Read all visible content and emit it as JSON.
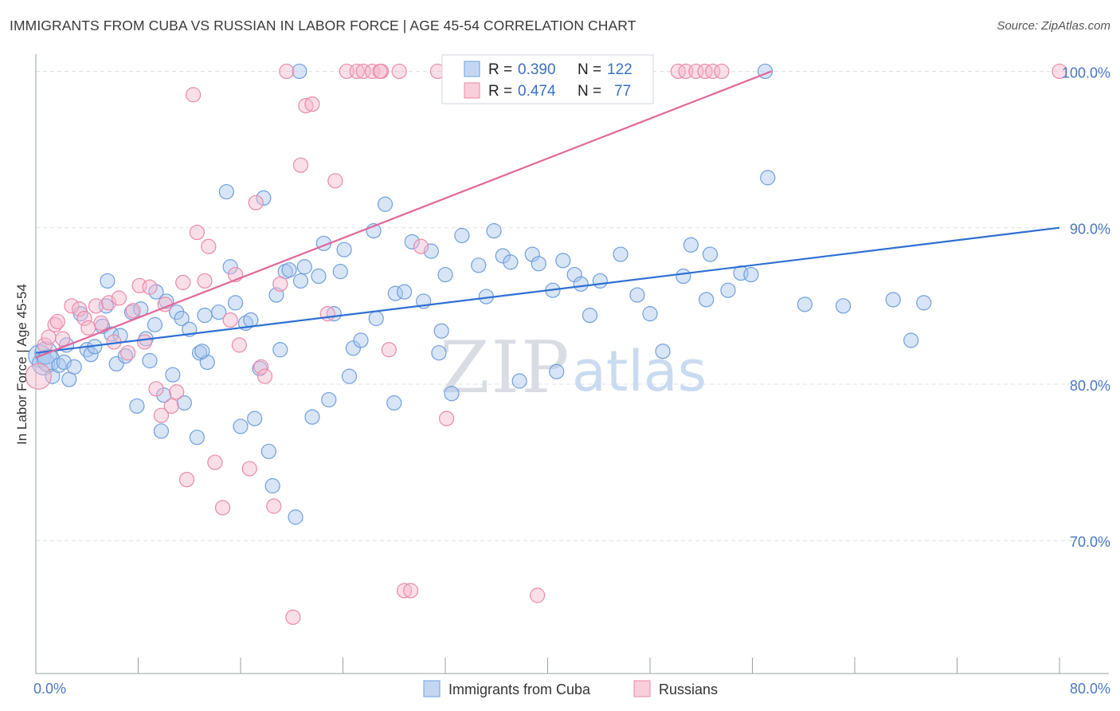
{
  "header": {
    "title": "IMMIGRANTS FROM CUBA VS RUSSIAN IN LABOR FORCE | AGE 45-54 CORRELATION CHART",
    "source": "Source: ZipAtlas.com"
  },
  "watermark": {
    "zip": "ZIP",
    "atlas": "atlas"
  },
  "chart_data": {
    "type": "scatter",
    "title": "IMMIGRANTS FROM CUBA VS RUSSIAN IN LABOR FORCE | AGE 45-54 CORRELATION CHART",
    "xlabel": "",
    "ylabel": "In Labor Force | Age 45-54",
    "xlim": [
      0,
      80
    ],
    "ylim": [
      61.5,
      101.5
    ],
    "x_tick_labels": [
      "0.0%",
      "80.0%"
    ],
    "y_ticks": [
      70,
      80,
      90,
      100
    ],
    "y_tick_labels": [
      "70.0%",
      "80.0%",
      "90.0%",
      "100.0%"
    ],
    "grid": true,
    "legend_placement": "bottom-center",
    "stats": [
      {
        "r_label": "R =",
        "r_value": "0.390",
        "n_label": "N =",
        "n_value": "122"
      },
      {
        "r_label": "R =",
        "r_value": "0.474",
        "n_label": "N =",
        "n_value": "77"
      }
    ],
    "series": [
      {
        "name": "Immigrants from Cuba",
        "color": "#a9c6ee",
        "stroke": "#6f9fdc",
        "line_color": "#2d6fd2",
        "trend": {
          "x": [
            0,
            80
          ],
          "y": [
            82.0,
            90.0
          ]
        },
        "points": [
          [
            0.3,
            81.8
          ],
          [
            0.6,
            81.3
          ],
          [
            0.8,
            82.0
          ],
          [
            1.0,
            81.5
          ],
          [
            1.3,
            80.5
          ],
          [
            1.8,
            81.2
          ],
          [
            2.2,
            81.4
          ],
          [
            2.4,
            82.5
          ],
          [
            2.6,
            80.3
          ],
          [
            3.0,
            81.1
          ],
          [
            3.5,
            84.5
          ],
          [
            4.0,
            82.2
          ],
          [
            4.3,
            81.9
          ],
          [
            4.6,
            82.4
          ],
          [
            5.2,
            83.7
          ],
          [
            5.5,
            85.0
          ],
          [
            5.6,
            86.6
          ],
          [
            5.9,
            83.2
          ],
          [
            6.3,
            81.3
          ],
          [
            6.6,
            83.1
          ],
          [
            7.0,
            81.8
          ],
          [
            7.5,
            84.6
          ],
          [
            7.9,
            78.6
          ],
          [
            8.2,
            84.8
          ],
          [
            8.6,
            82.9
          ],
          [
            8.9,
            81.5
          ],
          [
            9.3,
            83.8
          ],
          [
            9.4,
            85.9
          ],
          [
            9.8,
            77.0
          ],
          [
            10.0,
            79.3
          ],
          [
            10.2,
            85.3
          ],
          [
            10.7,
            80.6
          ],
          [
            11.0,
            84.6
          ],
          [
            11.4,
            84.2
          ],
          [
            11.6,
            78.8
          ],
          [
            12.0,
            83.5
          ],
          [
            12.6,
            76.6
          ],
          [
            12.8,
            82.0
          ],
          [
            13.2,
            84.4
          ],
          [
            13.4,
            81.4
          ],
          [
            14.3,
            84.6
          ],
          [
            14.9,
            92.3
          ],
          [
            15.2,
            87.5
          ],
          [
            15.6,
            85.2
          ],
          [
            16.0,
            77.3
          ],
          [
            16.4,
            83.9
          ],
          [
            16.8,
            84.1
          ],
          [
            17.1,
            77.8
          ],
          [
            17.5,
            81.0
          ],
          [
            17.8,
            91.9
          ],
          [
            18.2,
            75.7
          ],
          [
            18.5,
            73.5
          ],
          [
            18.8,
            85.7
          ],
          [
            19.1,
            82.2
          ],
          [
            19.5,
            87.2
          ],
          [
            19.8,
            87.3
          ],
          [
            20.3,
            71.5
          ],
          [
            20.7,
            86.6
          ],
          [
            21.0,
            87.5
          ],
          [
            21.6,
            77.9
          ],
          [
            22.1,
            86.9
          ],
          [
            22.5,
            89.0
          ],
          [
            22.9,
            79.0
          ],
          [
            23.3,
            84.5
          ],
          [
            23.8,
            87.2
          ],
          [
            24.1,
            88.6
          ],
          [
            24.5,
            80.5
          ],
          [
            24.8,
            82.3
          ],
          [
            25.4,
            82.8
          ],
          [
            26.4,
            89.8
          ],
          [
            26.6,
            84.2
          ],
          [
            27.3,
            91.5
          ],
          [
            28.1,
            85.8
          ],
          [
            28.8,
            85.9
          ],
          [
            29.4,
            89.1
          ],
          [
            30.3,
            85.3
          ],
          [
            30.9,
            88.5
          ],
          [
            31.5,
            82.0
          ],
          [
            31.7,
            83.4
          ],
          [
            32.0,
            87.0
          ],
          [
            32.5,
            79.4
          ],
          [
            33.3,
            89.5
          ],
          [
            34.6,
            87.6
          ],
          [
            35.2,
            85.6
          ],
          [
            35.8,
            89.8
          ],
          [
            36.5,
            88.2
          ],
          [
            37.1,
            87.8
          ],
          [
            37.8,
            80.2
          ],
          [
            38.8,
            88.3
          ],
          [
            39.3,
            87.7
          ],
          [
            40.4,
            86.0
          ],
          [
            40.7,
            80.8
          ],
          [
            41.2,
            87.9
          ],
          [
            42.1,
            87.0
          ],
          [
            42.6,
            86.4
          ],
          [
            43.3,
            84.4
          ],
          [
            44.1,
            86.6
          ],
          [
            45.7,
            88.3
          ],
          [
            47.0,
            85.7
          ],
          [
            48.0,
            84.5
          ],
          [
            49.0,
            82.1
          ],
          [
            50.6,
            86.9
          ],
          [
            51.2,
            88.9
          ],
          [
            52.4,
            85.4
          ],
          [
            52.7,
            88.3
          ],
          [
            54.1,
            86.0
          ],
          [
            55.1,
            87.1
          ],
          [
            55.9,
            87.0
          ],
          [
            57.2,
            93.2
          ],
          [
            60.1,
            85.1
          ],
          [
            63.1,
            85.0
          ],
          [
            67.0,
            85.4
          ],
          [
            68.4,
            82.8
          ],
          [
            69.4,
            85.2
          ],
          [
            20.6,
            100.0
          ],
          [
            57.0,
            100.0
          ],
          [
            28.0,
            78.8
          ],
          [
            13.0,
            82.1
          ]
        ]
      },
      {
        "name": "Russians",
        "color": "#f6b9cc",
        "stroke": "#e98aa8",
        "line_color": "#e0679a",
        "trend": {
          "x": [
            0,
            57.5
          ],
          "y": [
            81.7,
            100.0
          ]
        },
        "points": [
          [
            0.2,
            80.5
          ],
          [
            0.7,
            82.5
          ],
          [
            1.0,
            83.0
          ],
          [
            1.5,
            83.8
          ],
          [
            1.7,
            84.0
          ],
          [
            2.1,
            82.9
          ],
          [
            2.8,
            85.0
          ],
          [
            3.4,
            84.8
          ],
          [
            3.8,
            84.2
          ],
          [
            4.1,
            83.6
          ],
          [
            4.7,
            85.0
          ],
          [
            5.1,
            83.9
          ],
          [
            5.7,
            85.2
          ],
          [
            6.1,
            82.7
          ],
          [
            6.5,
            85.5
          ],
          [
            7.2,
            82.0
          ],
          [
            7.6,
            84.7
          ],
          [
            8.1,
            86.3
          ],
          [
            8.5,
            82.7
          ],
          [
            8.9,
            86.2
          ],
          [
            9.4,
            79.7
          ],
          [
            9.8,
            78.0
          ],
          [
            10.1,
            85.1
          ],
          [
            10.6,
            78.6
          ],
          [
            11.0,
            79.5
          ],
          [
            11.5,
            86.5
          ],
          [
            11.8,
            73.9
          ],
          [
            12.3,
            98.5
          ],
          [
            12.6,
            89.7
          ],
          [
            13.5,
            88.8
          ],
          [
            14.0,
            75.0
          ],
          [
            14.6,
            72.1
          ],
          [
            15.2,
            84.1
          ],
          [
            15.6,
            87.0
          ],
          [
            15.9,
            82.5
          ],
          [
            16.7,
            74.6
          ],
          [
            17.2,
            91.6
          ],
          [
            17.6,
            81.1
          ],
          [
            17.9,
            80.5
          ],
          [
            18.6,
            72.2
          ],
          [
            19.1,
            86.4
          ],
          [
            19.6,
            100.0
          ],
          [
            20.1,
            65.1
          ],
          [
            20.7,
            94.0
          ],
          [
            21.1,
            97.8
          ],
          [
            21.6,
            97.9
          ],
          [
            22.8,
            84.5
          ],
          [
            23.4,
            93.0
          ],
          [
            24.3,
            100.0
          ],
          [
            25.1,
            100.0
          ],
          [
            25.6,
            100.0
          ],
          [
            26.3,
            100.0
          ],
          [
            27.0,
            100.0
          ],
          [
            27.6,
            82.2
          ],
          [
            28.4,
            100.0
          ],
          [
            28.8,
            66.8
          ],
          [
            29.3,
            66.8
          ],
          [
            30.1,
            88.8
          ],
          [
            31.4,
            100.0
          ],
          [
            32.1,
            77.8
          ],
          [
            32.5,
            100.0
          ],
          [
            33.2,
            100.0
          ],
          [
            34.1,
            100.0
          ],
          [
            35.4,
            100.0
          ],
          [
            36.2,
            100.0
          ],
          [
            39.2,
            66.5
          ],
          [
            41.0,
            100.0
          ],
          [
            44.2,
            100.0
          ],
          [
            50.2,
            100.0
          ],
          [
            50.8,
            100.0
          ],
          [
            51.6,
            100.0
          ],
          [
            52.3,
            100.0
          ],
          [
            52.9,
            100.0
          ],
          [
            53.6,
            100.0
          ],
          [
            80.0,
            100.0
          ],
          [
            26.9,
            100.0
          ],
          [
            13.2,
            86.6
          ]
        ]
      }
    ]
  }
}
